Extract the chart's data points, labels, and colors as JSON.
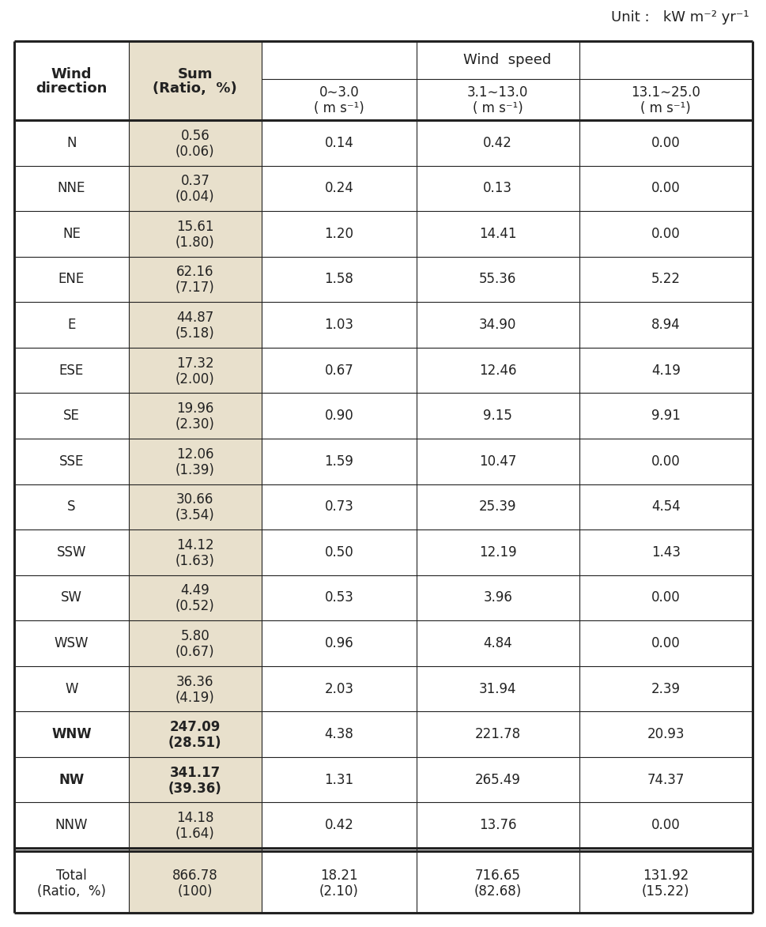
{
  "unit_text": "Unit :   kW m⁻² yr⁻¹",
  "rows": [
    {
      "dir": "N",
      "sum": "0.56",
      "ratio": "(0.06)",
      "v1": "0.14",
      "v2": "0.42",
      "v3": "0.00",
      "bold": false
    },
    {
      "dir": "NNE",
      "sum": "0.37",
      "ratio": "(0.04)",
      "v1": "0.24",
      "v2": "0.13",
      "v3": "0.00",
      "bold": false
    },
    {
      "dir": "NE",
      "sum": "15.61",
      "ratio": "(1.80)",
      "v1": "1.20",
      "v2": "14.41",
      "v3": "0.00",
      "bold": false
    },
    {
      "dir": "ENE",
      "sum": "62.16",
      "ratio": "(7.17)",
      "v1": "1.58",
      "v2": "55.36",
      "v3": "5.22",
      "bold": false
    },
    {
      "dir": "E",
      "sum": "44.87",
      "ratio": "(5.18)",
      "v1": "1.03",
      "v2": "34.90",
      "v3": "8.94",
      "bold": false
    },
    {
      "dir": "ESE",
      "sum": "17.32",
      "ratio": "(2.00)",
      "v1": "0.67",
      "v2": "12.46",
      "v3": "4.19",
      "bold": false
    },
    {
      "dir": "SE",
      "sum": "19.96",
      "ratio": "(2.30)",
      "v1": "0.90",
      "v2": "9.15",
      "v3": "9.91",
      "bold": false
    },
    {
      "dir": "SSE",
      "sum": "12.06",
      "ratio": "(1.39)",
      "v1": "1.59",
      "v2": "10.47",
      "v3": "0.00",
      "bold": false
    },
    {
      "dir": "S",
      "sum": "30.66",
      "ratio": "(3.54)",
      "v1": "0.73",
      "v2": "25.39",
      "v3": "4.54",
      "bold": false
    },
    {
      "dir": "SSW",
      "sum": "14.12",
      "ratio": "(1.63)",
      "v1": "0.50",
      "v2": "12.19",
      "v3": "1.43",
      "bold": false
    },
    {
      "dir": "SW",
      "sum": "4.49",
      "ratio": "(0.52)",
      "v1": "0.53",
      "v2": "3.96",
      "v3": "0.00",
      "bold": false
    },
    {
      "dir": "WSW",
      "sum": "5.80",
      "ratio": "(0.67)",
      "v1": "0.96",
      "v2": "4.84",
      "v3": "0.00",
      "bold": false
    },
    {
      "dir": "W",
      "sum": "36.36",
      "ratio": "(4.19)",
      "v1": "2.03",
      "v2": "31.94",
      "v3": "2.39",
      "bold": false
    },
    {
      "dir": "WNW",
      "sum": "247.09",
      "ratio": "(28.51)",
      "v1": "4.38",
      "v2": "221.78",
      "v3": "20.93",
      "bold": true
    },
    {
      "dir": "NW",
      "sum": "341.17",
      "ratio": "(39.36)",
      "v1": "1.31",
      "v2": "265.49",
      "v3": "74.37",
      "bold": true
    },
    {
      "dir": "NNW",
      "sum": "14.18",
      "ratio": "(1.64)",
      "v1": "0.42",
      "v2": "13.76",
      "v3": "0.00",
      "bold": false
    }
  ],
  "total": {
    "sum1": "866.78",
    "sum2": "(100)",
    "v1a": "18.21",
    "v1b": "(2.10)",
    "v2a": "716.65",
    "v2b": "(82.68)",
    "v3a": "131.92",
    "v3b": "(15.22)"
  },
  "sum_bg_color": "#e8e0cc",
  "white_bg": "#ffffff",
  "text_color": "#222222",
  "line_color": "#222222",
  "thick_lw": 2.2,
  "thin_lw": 0.8,
  "font_size_header": 13,
  "font_size_data": 12,
  "font_size_unit": 13
}
